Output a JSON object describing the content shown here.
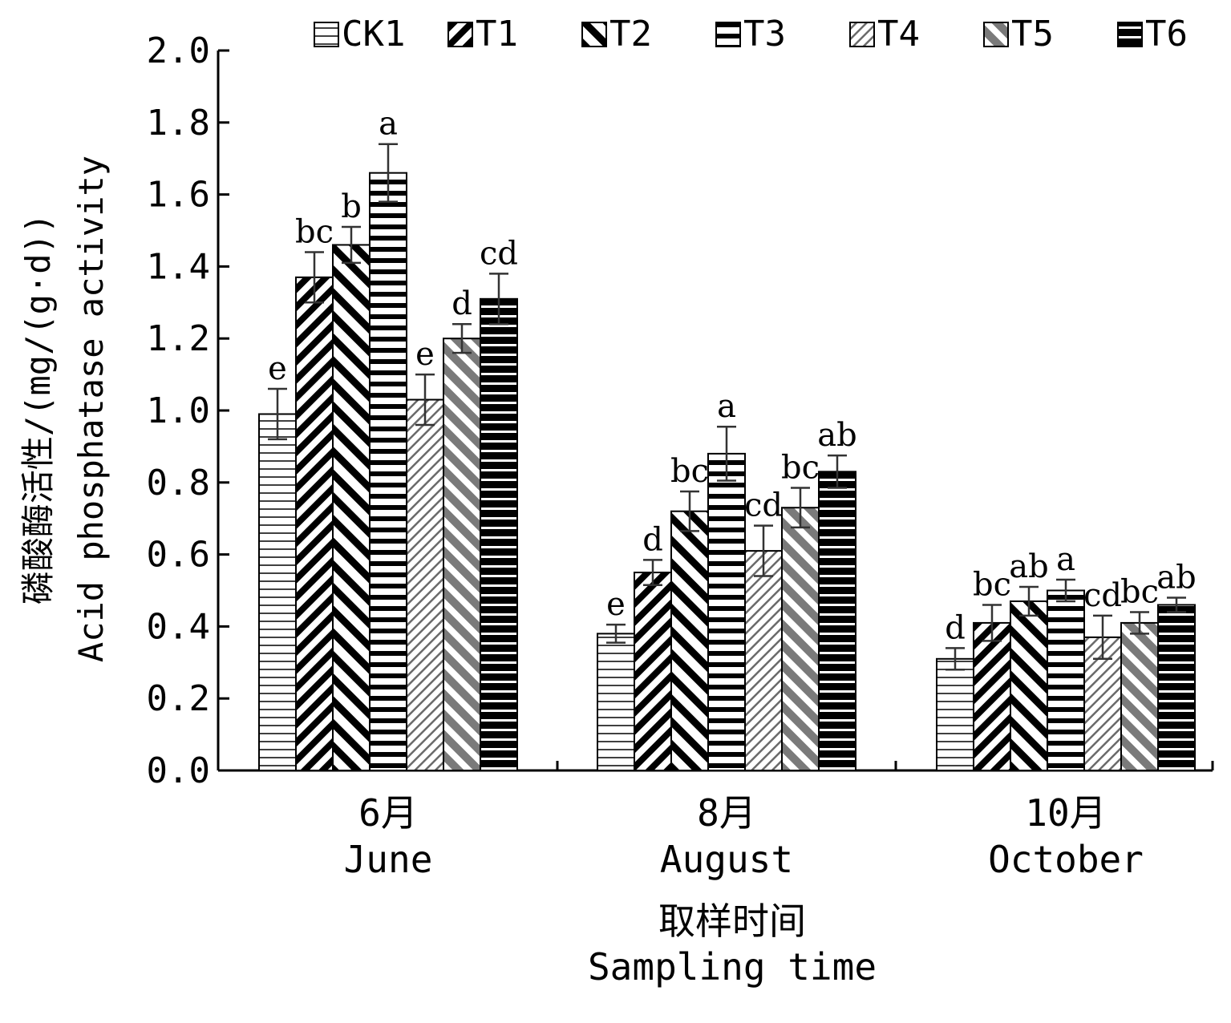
{
  "chart_data": {
    "type": "bar",
    "categories": [
      {
        "zh": "6月",
        "en": "June"
      },
      {
        "zh": "8月",
        "en": "August"
      },
      {
        "zh": "10月",
        "en": "October"
      }
    ],
    "series": [
      {
        "name": "CK1",
        "pattern": "hlines-thin",
        "values": [
          0.99,
          0.38,
          0.31
        ],
        "errors": [
          0.07,
          0.025,
          0.03
        ],
        "letters": [
          "e",
          "e",
          "d"
        ]
      },
      {
        "name": "T1",
        "pattern": "back-diagonal",
        "values": [
          1.37,
          0.55,
          0.41
        ],
        "errors": [
          0.07,
          0.035,
          0.05
        ],
        "letters": [
          "bc",
          "d",
          "bc"
        ]
      },
      {
        "name": "T2",
        "pattern": "forward-diagonal",
        "values": [
          1.46,
          0.72,
          0.47
        ],
        "errors": [
          0.05,
          0.055,
          0.04
        ],
        "letters": [
          "b",
          "bc",
          "ab"
        ]
      },
      {
        "name": "T3",
        "pattern": "hlines-thick",
        "values": [
          1.66,
          0.88,
          0.5
        ],
        "errors": [
          0.08,
          0.075,
          0.03
        ],
        "letters": [
          "a",
          "a",
          "a"
        ]
      },
      {
        "name": "T4",
        "pattern": "back-diagonal-fine",
        "values": [
          1.03,
          0.61,
          0.37
        ],
        "errors": [
          0.07,
          0.07,
          0.06
        ],
        "letters": [
          "e",
          "cd",
          "cd"
        ]
      },
      {
        "name": "T5",
        "pattern": "forward-diagonal-gray",
        "values": [
          1.2,
          0.73,
          0.41
        ],
        "errors": [
          0.04,
          0.055,
          0.03
        ],
        "letters": [
          "d",
          "bc",
          "bc"
        ]
      },
      {
        "name": "T6",
        "pattern": "hlines-black",
        "values": [
          1.31,
          0.83,
          0.46
        ],
        "errors": [
          0.07,
          0.045,
          0.02
        ],
        "letters": [
          "cd",
          "ab",
          "ab"
        ]
      }
    ],
    "ylim": [
      0,
      2.0
    ],
    "yticks": [
      "0.0",
      "0.2",
      "0.4",
      "0.6",
      "0.8",
      "1.0",
      "1.2",
      "1.4",
      "1.6",
      "1.8",
      "2.0"
    ],
    "ylabel_zh": "磷酸酶活性/(mg/(g·d))",
    "ylabel_en": "Acid phosphatase activity",
    "xlabel_zh": "取样时间",
    "xlabel_en": "Sampling time",
    "legend_position": "top",
    "grid": false
  }
}
